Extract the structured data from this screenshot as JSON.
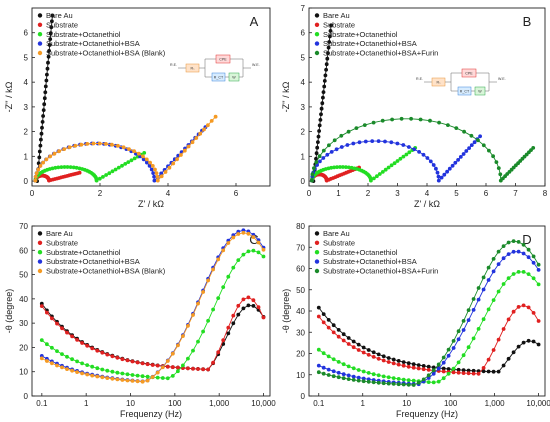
{
  "panels": [
    {
      "letter": "A",
      "type": "scatter",
      "xlabel": "Z' / kΩ",
      "ylabel": "-Z'' / kΩ",
      "xlim": [
        0,
        7
      ],
      "ylim": [
        -0.2,
        7
      ],
      "xticks": [
        0,
        2,
        4,
        6
      ],
      "yticks": [
        0,
        1,
        2,
        3,
        4,
        5,
        6
      ],
      "circuit": {
        "re": "R.E.",
        "we": "W.E.",
        "rs": "Rₛ",
        "cpe": "CPE",
        "rct": "R_CT",
        "w": "W"
      },
      "series": [
        {
          "name": "Bare Au",
          "color": "#111111",
          "kind": "nyquist_v",
          "x0": 0.15,
          "xe": 0.6,
          "ymax": 6.7
        },
        {
          "name": "Substrate",
          "color": "#e02020",
          "kind": "nyquist",
          "rs": 0.1,
          "r": 0.4,
          "yt": 0.2,
          "kx": 0.22,
          "xe": 1.4
        },
        {
          "name": "Substrate+Octanethiol",
          "color": "#22dd22",
          "kind": "nyquist",
          "rs": 0.1,
          "r": 1.8,
          "yt": 0.55,
          "kx": 0.5,
          "xe": 3.3
        },
        {
          "name": "Substrate+Octanethiol+BSA",
          "color": "#2233dd",
          "kind": "nyquist",
          "rs": 0.1,
          "r": 3.5,
          "yt": 1.5,
          "kx": 0.9,
          "xe": 5.1
        },
        {
          "name": "Substrate+Octanethiol+BSA (Blank)",
          "color": "#f59a23",
          "kind": "nyquist",
          "rs": 0.1,
          "r": 3.6,
          "yt": 1.5,
          "kx": 0.95,
          "xe": 5.4
        }
      ]
    },
    {
      "letter": "B",
      "type": "scatter",
      "xlabel": "Z' / kΩ",
      "ylabel": "-Z'' / kΩ",
      "xlim": [
        0,
        8
      ],
      "ylim": [
        -0.2,
        7
      ],
      "xticks": [
        0,
        1,
        2,
        3,
        4,
        5,
        6,
        7,
        8
      ],
      "yticks": [
        0,
        1,
        2,
        3,
        4,
        5,
        6,
        7
      ],
      "circuit": {
        "re": "R.E.",
        "we": "W.E.",
        "rs": "Rₛ",
        "cpe": "CPE",
        "rct": "R_CT",
        "w": "W"
      },
      "series": [
        {
          "name": "Bare Au",
          "color": "#111111",
          "kind": "nyquist_v",
          "x0": 0.15,
          "xe": 0.75,
          "ymax": 6.3
        },
        {
          "name": "Substrate",
          "color": "#e02020",
          "kind": "nyquist",
          "rs": 0.1,
          "r": 0.5,
          "yt": 0.25,
          "kx": 0.3,
          "xe": 1.7
        },
        {
          "name": "Substrate+Octanethiol",
          "color": "#22dd22",
          "kind": "nyquist",
          "rs": 0.1,
          "r": 2.0,
          "yt": 0.55,
          "kx": 0.55,
          "xe": 3.6
        },
        {
          "name": "Substrate+Octanethiol+BSA",
          "color": "#2233dd",
          "kind": "nyquist",
          "rs": 0.1,
          "r": 4.3,
          "yt": 1.6,
          "kx": 0.8,
          "xe": 5.8
        },
        {
          "name": "Substrate+Octanethiol+BSA+Furin",
          "color": "#1a8a2a",
          "kind": "nyquist",
          "rs": 0.1,
          "r": 6.4,
          "yt": 2.5,
          "kx": 0.75,
          "xe": 7.6
        }
      ]
    },
    {
      "letter": "C",
      "type": "scatter",
      "xlabel": "Frequenzy (Hz)",
      "ylabel": "-θ (degree)",
      "xlog": true,
      "xlim": [
        0.06,
        14000
      ],
      "ylim": [
        0,
        70
      ],
      "xticks": [
        0.1,
        1,
        10,
        100,
        1000,
        10000
      ],
      "xticklabels": [
        "0.1",
        "1",
        "10",
        "100",
        "1,000",
        "10,000"
      ],
      "yticks": [
        0,
        10,
        20,
        30,
        40,
        50,
        60,
        70
      ],
      "series": [
        {
          "name": "Bare Au",
          "color": "#111111",
          "kind": "bode",
          "a": 28,
          "b": 0.15,
          "c": 9,
          "d": 1.0,
          "pk": 35,
          "pf": 3.7,
          "w": 0.55
        },
        {
          "name": "Substrate",
          "color": "#e02020",
          "kind": "bode",
          "a": 27,
          "b": 0.17,
          "c": 9,
          "d": 1.0,
          "pk": 38,
          "pf": 3.65,
          "w": 0.5
        },
        {
          "name": "Substrate+Octanethiol",
          "color": "#22dd22",
          "kind": "bode",
          "a": 17,
          "b": 0.17,
          "c": 5,
          "d": 1.0,
          "pk": 58,
          "pf": 3.75,
          "w": 0.85
        },
        {
          "name": "Substrate+Octanethiol+BSA",
          "color": "#2233dd",
          "kind": "bode",
          "a": 12,
          "b": 0.17,
          "c": 4,
          "d": 0.5,
          "pk": 67,
          "pf": 3.55,
          "w": 0.95
        },
        {
          "name": "Substrate+Octanethiol+BSA (Blank)",
          "color": "#f59a23",
          "kind": "bode",
          "a": 11,
          "b": 0.17,
          "c": 4,
          "d": 0.5,
          "pk": 66,
          "pf": 3.55,
          "w": 0.95
        }
      ]
    },
    {
      "letter": "D",
      "type": "scatter",
      "xlabel": "Frequenzy (Hz)",
      "ylabel": "-θ (degree)",
      "xlog": true,
      "xlim": [
        0.06,
        14000
      ],
      "ylim": [
        0,
        80
      ],
      "xticks": [
        0.1,
        1,
        10,
        100,
        1000,
        10000
      ],
      "xticklabels": [
        "0.1",
        "1",
        "10",
        "100",
        "1,000",
        "10,000"
      ],
      "yticks": [
        0,
        10,
        20,
        30,
        40,
        50,
        60,
        70,
        80
      ],
      "series": [
        {
          "name": "Bare Au",
          "color": "#111111",
          "kind": "bode",
          "a": 31,
          "b": 0.15,
          "c": 9,
          "d": 1.6,
          "pk": 23,
          "pf": 3.8,
          "w": 0.5
        },
        {
          "name": "Substrate",
          "color": "#e02020",
          "kind": "bode",
          "a": 28,
          "b": 0.15,
          "c": 8,
          "d": 1.4,
          "pk": 40,
          "pf": 3.65,
          "w": 0.55
        },
        {
          "name": "Substrate+Octanethiol",
          "color": "#22dd22",
          "kind": "bode",
          "a": 17,
          "b": 0.17,
          "c": 4,
          "d": 0.8,
          "pk": 57,
          "pf": 3.6,
          "w": 0.85
        },
        {
          "name": "Substrate+Octanethiol+BSA",
          "color": "#2233dd",
          "kind": "bode",
          "a": 10,
          "b": 0.17,
          "c": 4,
          "d": 0.3,
          "pk": 67,
          "pf": 3.5,
          "w": 0.95
        },
        {
          "name": "Substrate+Octanethiol+BSA+Furin",
          "color": "#1a8a2a",
          "kind": "bode",
          "a": 7,
          "b": 0.17,
          "c": 4,
          "d": 0.2,
          "pk": 72,
          "pf": 3.45,
          "w": 0.95
        }
      ]
    }
  ]
}
